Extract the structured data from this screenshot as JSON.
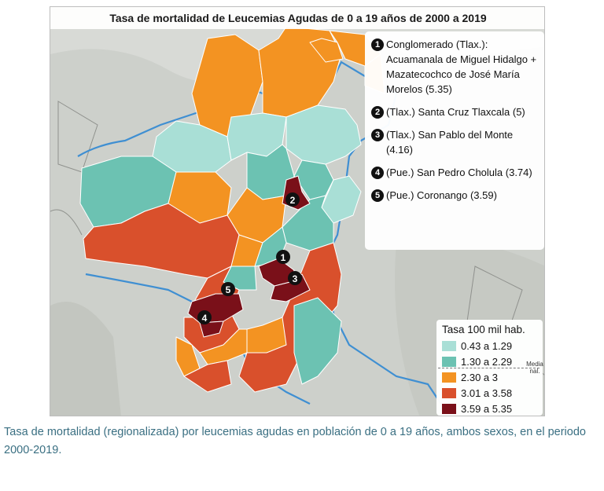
{
  "title": "Tasa de mortalidad de Leucemias Agudas de 0 a 19 años de 2000 a 2019",
  "references": [
    {
      "num": "1",
      "text": "Conglomerado (Tlax.): Acuamanala de Miguel Hidalgo + Mazatecochco de José María Morelos (5.35)"
    },
    {
      "num": "2",
      "text": "(Tlax.) Santa Cruz Tlaxcala (5)"
    },
    {
      "num": "3",
      "text": "(Tlax.) San Pablo del Monte (4.16)"
    },
    {
      "num": "4",
      "text": "(Pue.) San Pedro Cholula (3.74)"
    },
    {
      "num": "5",
      "text": "(Pue.) Coronango (3.59)"
    }
  ],
  "legend": {
    "title": "Tasa 100 mil hab.",
    "media_label": "Media nal.",
    "classes": [
      {
        "label": "0.43 a 1.29",
        "color": "#a9dfd6"
      },
      {
        "label": "1.30 a 2.29",
        "color": "#6cc2b2"
      },
      {
        "label": "2.30 a 3",
        "color": "#f39322"
      },
      {
        "label": "3.01 a 3.58",
        "color": "#d9502c"
      },
      {
        "label": "3.59 a 5.35",
        "color": "#7a1019"
      }
    ]
  },
  "map_markers": [
    "1",
    "2",
    "3",
    "4",
    "5"
  ],
  "caption": "Tasa de mortalidad (regionalizada) por leucemias agudas en población de 0 a 19 años, ambos sexos, en el periodo 2000-2019."
}
